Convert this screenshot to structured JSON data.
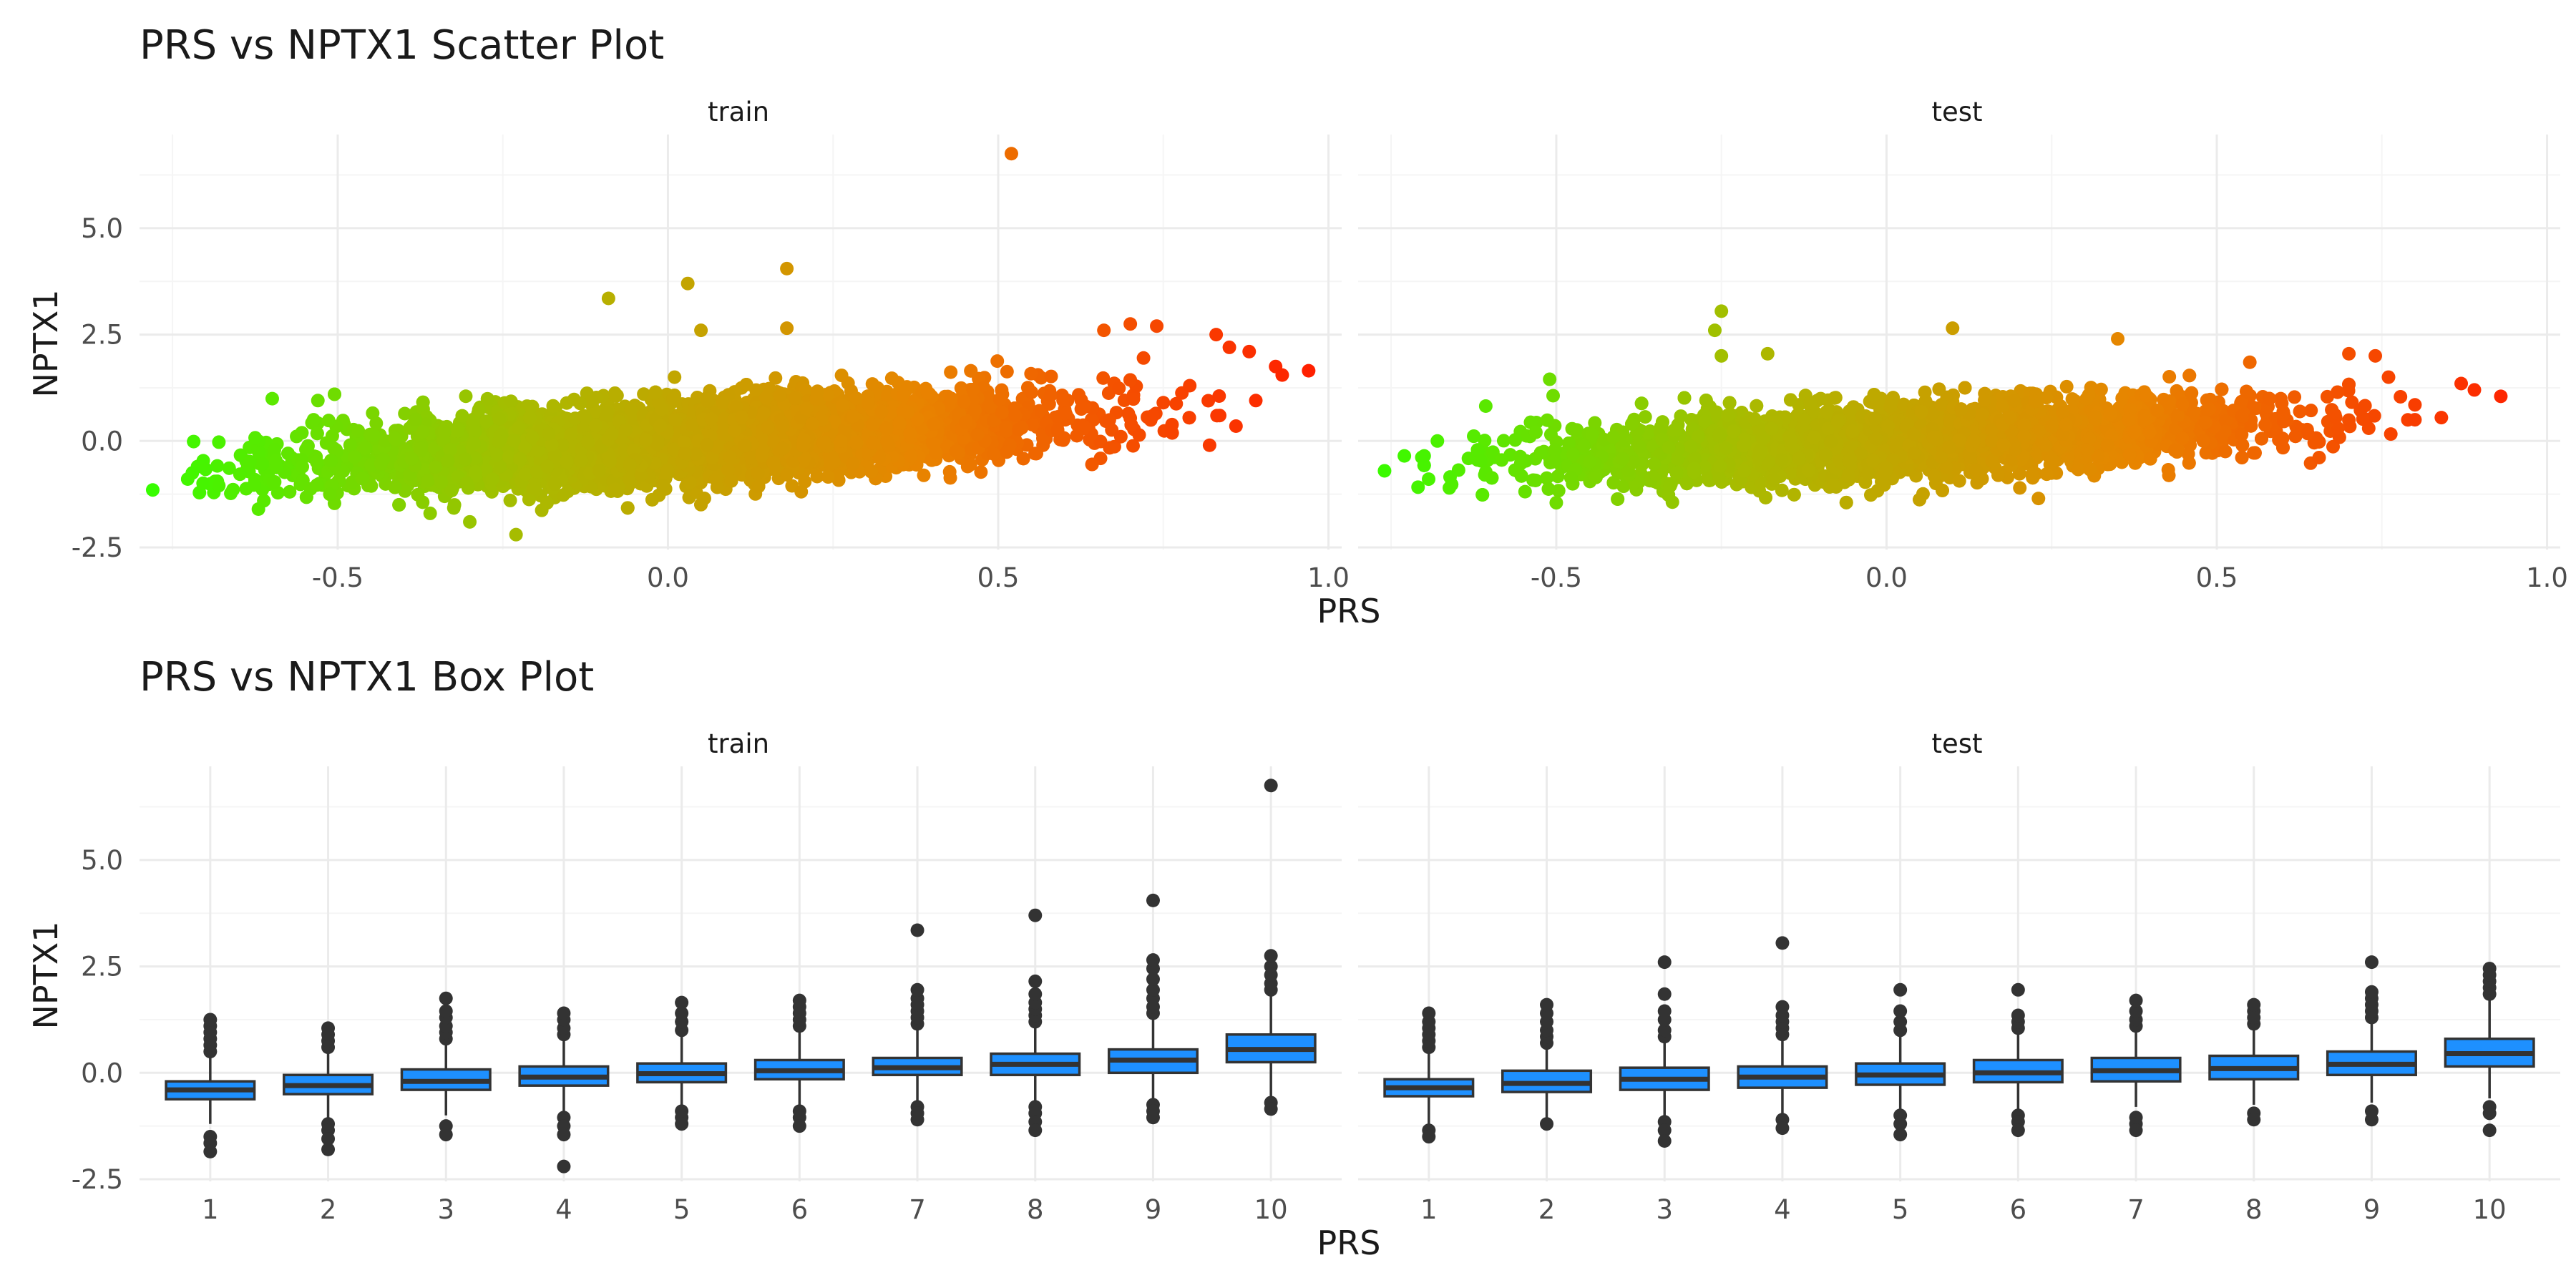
{
  "colors": {
    "grid_major": "#ebebeb",
    "grid_minor": "#f5f5f5",
    "box_fill": "#1e90ff",
    "box_line": "#333333",
    "gradient": [
      "#33ff00",
      "#aaba00",
      "#e88400",
      "#ff2000"
    ]
  },
  "scatter_section": {
    "title": "PRS vs NPTX1 Scatter Plot",
    "xlabel": "PRS",
    "ylabel": "NPTX1"
  },
  "box_section": {
    "title": "PRS vs NPTX1 Box Plot",
    "xlabel": "PRS",
    "ylabel": "NPTX1"
  },
  "chart_data": [
    {
      "type": "scatter",
      "title": "PRS vs NPTX1 Scatter Plot",
      "xlabel": "PRS",
      "ylabel": "NPTX1",
      "xlim": [
        -0.8,
        1.02
      ],
      "ylim": [
        -2.55,
        7.2
      ],
      "xticks": [
        -0.5,
        0.0,
        0.5,
        1.0
      ],
      "xtick_labels": [
        "-0.5",
        "0.0",
        "0.5",
        "1.0"
      ],
      "yticks": [
        -2.5,
        0.0,
        2.5,
        5.0
      ],
      "ytick_labels": [
        "-2.5",
        "0.0",
        "2.5",
        "5.0"
      ],
      "color_by": "PRS",
      "grid": true,
      "panels": [
        {
          "name": "train",
          "trend": {
            "slope": 1.55,
            "intercept": -0.02,
            "x_range": [
              -0.78,
              0.97
            ],
            "spread": 0.45
          },
          "points": [
            {
              "x": -0.78,
              "y": -1.15
            },
            {
              "x": -0.72,
              "y": -0.75
            },
            {
              "x": -0.68,
              "y": -1.05
            },
            {
              "x": -0.62,
              "y": -1.6
            },
            {
              "x": -0.53,
              "y": 0.95
            },
            {
              "x": -0.36,
              "y": -1.7
            },
            {
              "x": -0.3,
              "y": -1.9
            },
            {
              "x": -0.23,
              "y": -2.2
            },
            {
              "x": -0.09,
              "y": 3.35
            },
            {
              "x": 0.01,
              "y": 1.5
            },
            {
              "x": 0.03,
              "y": 3.7
            },
            {
              "x": 0.05,
              "y": 2.6
            },
            {
              "x": 0.18,
              "y": 4.05
            },
            {
              "x": 0.18,
              "y": 2.65
            },
            {
              "x": 0.52,
              "y": 6.75
            },
            {
              "x": 0.66,
              "y": 2.6
            },
            {
              "x": 0.7,
              "y": 2.75
            },
            {
              "x": 0.74,
              "y": 2.7
            },
            {
              "x": 0.83,
              "y": 2.5
            },
            {
              "x": 0.85,
              "y": 2.2
            },
            {
              "x": 0.88,
              "y": 2.1
            },
            {
              "x": 0.92,
              "y": 1.75
            },
            {
              "x": 0.93,
              "y": 1.55
            },
            {
              "x": 0.97,
              "y": 1.65
            },
            {
              "x": 0.82,
              "y": -0.1
            },
            {
              "x": 0.86,
              "y": 0.35
            },
            {
              "x": 0.89,
              "y": 0.95
            },
            {
              "x": 0.75,
              "y": 0.9
            },
            {
              "x": 0.79,
              "y": 1.3
            },
            {
              "x": 0.72,
              "y": 1.95
            }
          ]
        },
        {
          "name": "test",
          "trend": {
            "slope": 1.38,
            "intercept": 0.0,
            "x_range": [
              -0.76,
              0.93
            ],
            "spread": 0.42
          },
          "points": [
            {
              "x": -0.76,
              "y": -0.7
            },
            {
              "x": -0.73,
              "y": -0.35
            },
            {
              "x": -0.7,
              "y": -0.35
            },
            {
              "x": -0.68,
              "y": 0.0
            },
            {
              "x": -0.51,
              "y": 1.45
            },
            {
              "x": -0.5,
              "y": -1.45
            },
            {
              "x": -0.25,
              "y": 3.05
            },
            {
              "x": -0.26,
              "y": 2.6
            },
            {
              "x": -0.25,
              "y": 2.0
            },
            {
              "x": -0.18,
              "y": 2.05
            },
            {
              "x": 0.1,
              "y": 2.65
            },
            {
              "x": 0.23,
              "y": -1.35
            },
            {
              "x": 0.35,
              "y": 2.4
            },
            {
              "x": 0.55,
              "y": 1.85
            },
            {
              "x": 0.7,
              "y": 2.05
            },
            {
              "x": 0.74,
              "y": 2.0
            },
            {
              "x": 0.76,
              "y": 1.5
            },
            {
              "x": 0.8,
              "y": 0.85
            },
            {
              "x": 0.84,
              "y": 0.55
            },
            {
              "x": 0.87,
              "y": 1.35
            },
            {
              "x": 0.89,
              "y": 1.2
            },
            {
              "x": 0.93,
              "y": 1.05
            },
            {
              "x": 0.8,
              "y": 0.5
            },
            {
              "x": 0.73,
              "y": 0.3
            },
            {
              "x": 0.68,
              "y": 0.55
            }
          ]
        }
      ]
    },
    {
      "type": "box",
      "title": "PRS vs NPTX1 Box Plot",
      "xlabel": "PRS",
      "ylabel": "NPTX1",
      "categories": [
        "1",
        "2",
        "3",
        "4",
        "5",
        "6",
        "7",
        "8",
        "9",
        "10"
      ],
      "ylim": [
        -2.55,
        7.2
      ],
      "yticks": [
        -2.5,
        0.0,
        2.5,
        5.0
      ],
      "ytick_labels": [
        "-2.5",
        "0.0",
        "2.5",
        "5.0"
      ],
      "grid": true,
      "panels": [
        {
          "name": "train",
          "boxes": [
            {
              "q1": -0.62,
              "median": -0.4,
              "q3": -0.2,
              "lower": -1.2,
              "upper": 0.4,
              "outliers": [
                0.5,
                0.65,
                0.8,
                0.95,
                1.1,
                1.25,
                -1.5,
                -1.65,
                -1.85
              ]
            },
            {
              "q1": -0.5,
              "median": -0.3,
              "q3": -0.05,
              "lower": -1.1,
              "upper": 0.55,
              "outliers": [
                0.6,
                0.75,
                0.9,
                1.05,
                -1.2,
                -1.35,
                -1.55,
                -1.8
              ]
            },
            {
              "q1": -0.4,
              "median": -0.2,
              "q3": 0.08,
              "lower": -1.0,
              "upper": 0.7,
              "outliers": [
                0.8,
                0.95,
                1.1,
                1.3,
                1.45,
                1.75,
                -1.25,
                -1.45
              ]
            },
            {
              "q1": -0.3,
              "median": -0.1,
              "q3": 0.15,
              "lower": -0.95,
              "upper": 0.8,
              "outliers": [
                0.9,
                1.05,
                1.25,
                1.4,
                -1.05,
                -1.25,
                -1.45,
                -2.2
              ]
            },
            {
              "q1": -0.22,
              "median": -0.02,
              "q3": 0.22,
              "lower": -0.85,
              "upper": 0.9,
              "outliers": [
                1.0,
                1.2,
                1.4,
                1.65,
                -0.9,
                -1.05,
                -1.2
              ]
            },
            {
              "q1": -0.15,
              "median": 0.05,
              "q3": 0.3,
              "lower": -0.8,
              "upper": 0.95,
              "outliers": [
                1.1,
                1.25,
                1.4,
                1.55,
                1.7,
                -0.9,
                -1.05,
                -1.25
              ]
            },
            {
              "q1": -0.05,
              "median": 0.12,
              "q3": 0.35,
              "lower": -0.75,
              "upper": 1.0,
              "outliers": [
                1.15,
                1.3,
                1.45,
                1.6,
                1.75,
                1.95,
                3.35,
                -0.8,
                -0.95,
                -1.1
              ]
            },
            {
              "q1": -0.05,
              "median": 0.2,
              "q3": 0.45,
              "lower": -0.7,
              "upper": 1.1,
              "outliers": [
                1.2,
                1.35,
                1.5,
                1.65,
                1.85,
                2.15,
                3.7,
                -0.8,
                -0.95,
                -1.15,
                -1.35
              ]
            },
            {
              "q1": 0.0,
              "median": 0.3,
              "q3": 0.55,
              "lower": -0.65,
              "upper": 1.3,
              "outliers": [
                1.4,
                1.55,
                1.75,
                1.95,
                2.2,
                2.45,
                2.65,
                4.05,
                -0.75,
                -0.9,
                -1.05
              ]
            },
            {
              "q1": 0.25,
              "median": 0.55,
              "q3": 0.9,
              "lower": -0.6,
              "upper": 1.8,
              "outliers": [
                1.95,
                2.1,
                2.3,
                2.5,
                2.75,
                6.75,
                -0.7,
                -0.85
              ]
            }
          ]
        },
        {
          "name": "test",
          "boxes": [
            {
              "q1": -0.55,
              "median": -0.35,
              "q3": -0.15,
              "lower": -1.2,
              "upper": 0.45,
              "outliers": [
                0.6,
                0.75,
                0.9,
                1.05,
                1.2,
                1.4,
                -1.35,
                -1.5
              ]
            },
            {
              "q1": -0.45,
              "median": -0.25,
              "q3": 0.05,
              "lower": -1.05,
              "upper": 0.6,
              "outliers": [
                0.7,
                0.85,
                1.0,
                1.2,
                1.4,
                1.6,
                -1.2
              ]
            },
            {
              "q1": -0.4,
              "median": -0.15,
              "q3": 0.12,
              "lower": -1.0,
              "upper": 0.75,
              "outliers": [
                0.85,
                1.0,
                1.25,
                1.45,
                1.85,
                2.6,
                -1.15,
                -1.35,
                -1.6
              ]
            },
            {
              "q1": -0.35,
              "median": -0.1,
              "q3": 0.15,
              "lower": -0.95,
              "upper": 0.8,
              "outliers": [
                0.9,
                1.05,
                1.2,
                1.35,
                1.55,
                3.05,
                -1.1,
                -1.3
              ]
            },
            {
              "q1": -0.28,
              "median": -0.05,
              "q3": 0.22,
              "lower": -0.9,
              "upper": 0.85,
              "outliers": [
                1.0,
                1.2,
                1.45,
                1.95,
                -1.0,
                -1.2,
                -1.45
              ]
            },
            {
              "q1": -0.22,
              "median": 0.0,
              "q3": 0.3,
              "lower": -0.85,
              "upper": 0.95,
              "outliers": [
                1.05,
                1.2,
                1.35,
                1.95,
                -1.0,
                -1.15,
                -1.35
              ]
            },
            {
              "q1": -0.2,
              "median": 0.05,
              "q3": 0.35,
              "lower": -0.8,
              "upper": 1.0,
              "outliers": [
                1.1,
                1.25,
                1.45,
                1.7,
                -1.05,
                -1.2,
                -1.35
              ]
            },
            {
              "q1": -0.15,
              "median": 0.1,
              "q3": 0.4,
              "lower": -0.75,
              "upper": 1.05,
              "outliers": [
                1.15,
                1.3,
                1.45,
                1.6,
                -0.95,
                -1.1
              ]
            },
            {
              "q1": -0.05,
              "median": 0.2,
              "q3": 0.5,
              "lower": -0.7,
              "upper": 1.2,
              "outliers": [
                1.3,
                1.45,
                1.6,
                1.75,
                1.9,
                2.6,
                -0.9,
                -1.1
              ]
            },
            {
              "q1": 0.15,
              "median": 0.45,
              "q3": 0.8,
              "lower": -0.6,
              "upper": 1.7,
              "outliers": [
                1.85,
                2.0,
                2.15,
                2.3,
                2.45,
                -0.8,
                -0.95,
                -1.35
              ]
            }
          ]
        }
      ]
    }
  ]
}
